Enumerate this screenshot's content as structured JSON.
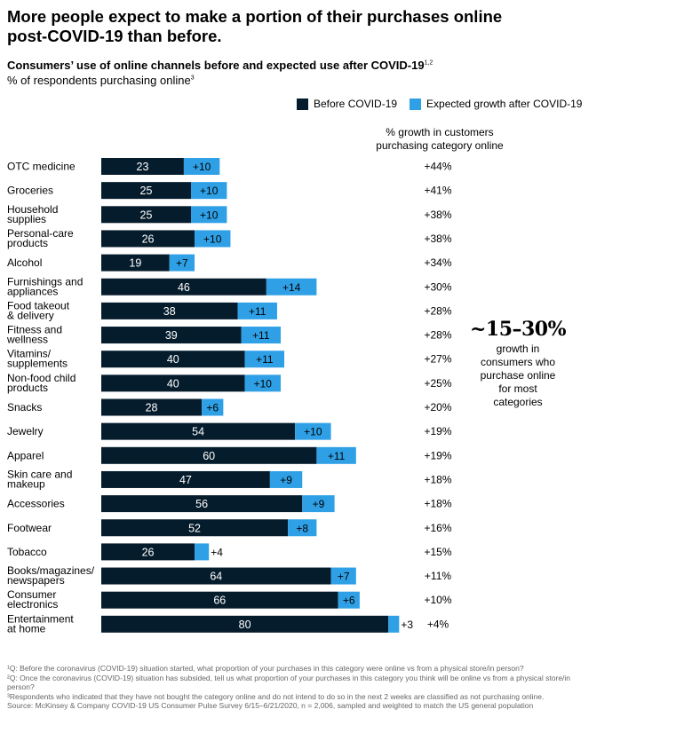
{
  "header": {
    "title": "More people expect to make a portion of their purchases online post-COVID-19 than before.",
    "subtitle": "Consumers’ use of online channels before and expected use after COVID-19",
    "subtitle_sup": "1,2",
    "units": "% of respondents purchasing online",
    "units_sup": "3"
  },
  "legend": {
    "before": "Before COVID-19",
    "after": "Expected growth after COVID-19"
  },
  "growth_header": [
    "% growth in customers",
    "purchasing category online"
  ],
  "callout": {
    "big": "~15–30%",
    "lines": [
      "growth in",
      "consumers who",
      "purchase online",
      "for most",
      "categories"
    ]
  },
  "colors": {
    "before": "#051c2c",
    "after": "#2fa0e6"
  },
  "chart_data": {
    "type": "bar",
    "orientation": "horizontal",
    "stacked": true,
    "categories": [
      [
        "OTC medicine"
      ],
      [
        "Groceries"
      ],
      [
        "Household",
        "supplies"
      ],
      [
        "Personal-care",
        "products"
      ],
      [
        "Alcohol"
      ],
      [
        "Furnishings and",
        "appliances"
      ],
      [
        "Food takeout",
        "& delivery"
      ],
      [
        "Fitness and",
        "wellness"
      ],
      [
        "Vitamins/",
        "supplements"
      ],
      [
        "Non-food child",
        "products"
      ],
      [
        "Snacks"
      ],
      [
        "Jewelry"
      ],
      [
        "Apparel"
      ],
      [
        "Skin care and",
        "makeup"
      ],
      [
        "Accessories"
      ],
      [
        "Footwear"
      ],
      [
        "Tobacco"
      ],
      [
        "Books/magazines/",
        "newspapers"
      ],
      [
        "Consumer",
        "electronics"
      ],
      [
        "Entertainment",
        "at home"
      ]
    ],
    "series": [
      {
        "name": "Before COVID-19",
        "values": [
          23,
          25,
          25,
          26,
          19,
          46,
          38,
          39,
          40,
          40,
          28,
          54,
          60,
          47,
          56,
          52,
          26,
          64,
          66,
          80
        ]
      },
      {
        "name": "Expected growth after COVID-19",
        "values": [
          10,
          10,
          10,
          10,
          7,
          14,
          11,
          11,
          11,
          10,
          6,
          10,
          11,
          9,
          9,
          8,
          4,
          7,
          6,
          3
        ],
        "labels": [
          "+10",
          "+10",
          "+10",
          "+10",
          "+7",
          "+14",
          "+11",
          "+11",
          "+11",
          "+10",
          "+6",
          "+10",
          "+11",
          "+9",
          "+9",
          "+8",
          "+4",
          "+7",
          "+6",
          "+3"
        ]
      }
    ],
    "growth_pct": [
      "+44%",
      "+41%",
      "+38%",
      "+38%",
      "+34%",
      "+30%",
      "+28%",
      "+28%",
      "+27%",
      "+25%",
      "+20%",
      "+19%",
      "+19%",
      "+18%",
      "+18%",
      "+16%",
      "+15%",
      "+11%",
      "+10%",
      "+4%"
    ]
  },
  "footnotes": [
    "¹Q: Before the coronavirus (COVID-19) situation started, what proportion of your purchases in this category were online vs from a physical store/in person?",
    "²Q: Once the coronavirus (COVID-19) situation has subsided, tell us what proportion of your purchases in this category you think will be online vs from a physical store/in person?",
    "³Respondents who indicated that they have not bought the category online and do not intend to do so in the next 2 weeks are classified as not purchasing online.",
    "Source: McKinsey & Company COVID-19 US Consumer Pulse Survey 6/15–6/21/2020, n = 2,006, sampled and weighted to match the US general population"
  ]
}
